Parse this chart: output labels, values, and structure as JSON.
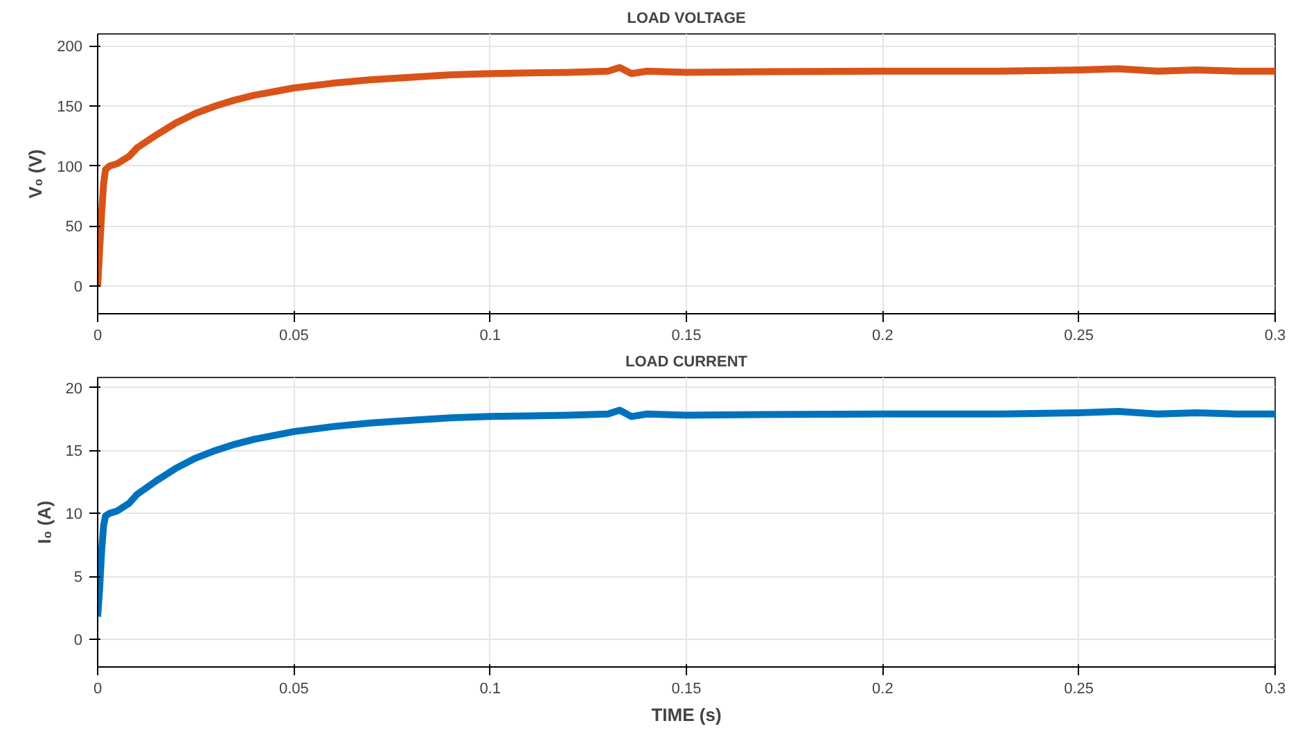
{
  "chart_data": [
    {
      "type": "line",
      "title": "LOAD VOLTAGE",
      "ylabel": "V₀ (V)",
      "x": [
        0,
        0.0005,
        0.001,
        0.0015,
        0.002,
        0.003,
        0.005,
        0.008,
        0.01,
        0.015,
        0.02,
        0.025,
        0.03,
        0.035,
        0.04,
        0.045,
        0.05,
        0.06,
        0.07,
        0.08,
        0.09,
        0.1,
        0.11,
        0.12,
        0.13,
        0.133,
        0.136,
        0.14,
        0.15,
        0.17,
        0.2,
        0.23,
        0.25,
        0.26,
        0.27,
        0.28,
        0.29,
        0.3
      ],
      "series": [
        {
          "color": "#d95319",
          "values": [
            0,
            30,
            60,
            85,
            97,
            100,
            102,
            108,
            115,
            126,
            136,
            144,
            150,
            155,
            159,
            162,
            165,
            169,
            172,
            174,
            176,
            177,
            177.5,
            178,
            179,
            182,
            177,
            179,
            178,
            178.5,
            179,
            179,
            180,
            181,
            179,
            180,
            179,
            179
          ]
        }
      ],
      "xlim": [
        0,
        0.3
      ],
      "xticks": [
        0,
        0.05,
        0.1,
        0.15,
        0.2,
        0.25,
        0.3
      ],
      "ylim": [
        -23,
        210
      ],
      "yticks": [
        0,
        50,
        100,
        150,
        200
      ],
      "grid": true,
      "line_style": "solid"
    },
    {
      "type": "line",
      "title": "LOAD CURRENT",
      "xlabel": "TIME (s)",
      "ylabel": "I₀ (A)",
      "x": [
        0,
        0.0005,
        0.001,
        0.0015,
        0.002,
        0.003,
        0.005,
        0.008,
        0.01,
        0.015,
        0.02,
        0.025,
        0.03,
        0.035,
        0.04,
        0.045,
        0.05,
        0.06,
        0.07,
        0.08,
        0.09,
        0.1,
        0.11,
        0.12,
        0.13,
        0.133,
        0.136,
        0.14,
        0.15,
        0.17,
        0.2,
        0.23,
        0.25,
        0.26,
        0.27,
        0.28,
        0.29,
        0.3
      ],
      "series": [
        {
          "color": "#0072bd",
          "values": [
            1.8,
            4,
            7,
            9,
            9.8,
            10,
            10.2,
            10.8,
            11.5,
            12.6,
            13.6,
            14.4,
            15,
            15.5,
            15.9,
            16.2,
            16.5,
            16.9,
            17.2,
            17.4,
            17.6,
            17.7,
            17.75,
            17.8,
            17.9,
            18.2,
            17.7,
            17.9,
            17.8,
            17.85,
            17.9,
            17.9,
            18,
            18.1,
            17.9,
            18,
            17.9,
            17.9
          ]
        }
      ],
      "xlim": [
        0,
        0.3
      ],
      "xticks": [
        0,
        0.05,
        0.1,
        0.15,
        0.2,
        0.25,
        0.3
      ],
      "ylim": [
        -2.2,
        20.8
      ],
      "yticks": [
        0,
        5,
        10,
        15,
        20
      ],
      "grid": true,
      "line_style": "solid"
    }
  ]
}
